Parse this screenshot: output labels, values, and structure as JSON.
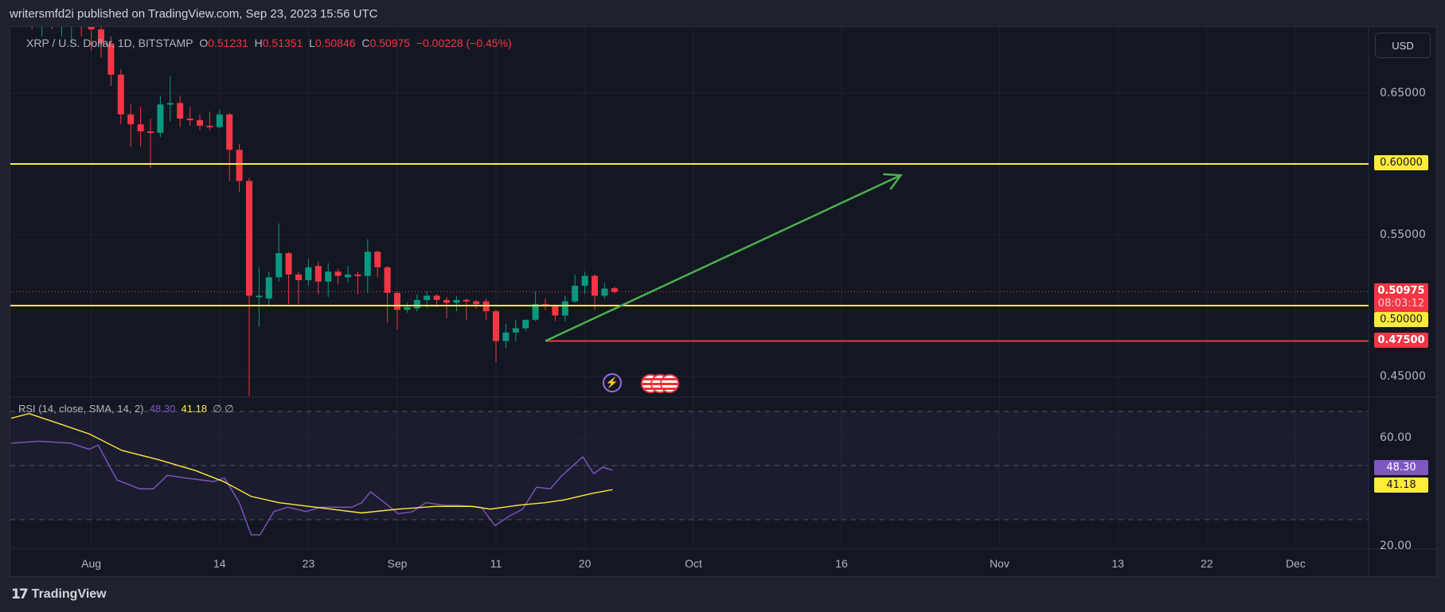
{
  "header": {
    "published": "writersmfd2i published on TradingView.com, Sep 23, 2023 15:56 UTC"
  },
  "legend": {
    "symbol": "XRP / U.S. Dollar, 1D, BITSTAMP",
    "o_label": "O",
    "o": "0.51231",
    "h_label": "H",
    "h": "0.51351",
    "l_label": "L",
    "l": "0.50846",
    "c_label": "C",
    "c": "0.50975",
    "change": "−0.00228 (−0.45%)"
  },
  "currency_button": "USD",
  "price_axis": [
    "0.65000",
    "0.55000",
    "0.45000"
  ],
  "tags": {
    "level_high": "0.60000",
    "last_price": "0.50975",
    "countdown": "08:03:12",
    "level_mid": "0.50000",
    "level_low": "0.47500",
    "rsi": "48.30",
    "rsi_sma": "41.18"
  },
  "rsi_axis": [
    "60.00",
    "20.00"
  ],
  "rsi_legend": {
    "name": "RSI (14, close, SMA, 14, 2)",
    "rsi": "48.30",
    "sma": "41.18",
    "extra": "∅ ∅"
  },
  "time_axis": [
    {
      "label": "Aug",
      "d": 0
    },
    {
      "label": "14",
      "d": 13
    },
    {
      "label": "23",
      "d": 22
    },
    {
      "label": "Sep",
      "d": 31
    },
    {
      "label": "11",
      "d": 41
    },
    {
      "label": "20",
      "d": 50
    },
    {
      "label": "Oct",
      "d": 61
    },
    {
      "label": "16",
      "d": 76
    },
    {
      "label": "Nov",
      "d": 92
    },
    {
      "label": "13",
      "d": 104
    },
    {
      "label": "22",
      "d": 113
    },
    {
      "label": "Dec",
      "d": 122
    }
  ],
  "footer": {
    "brand": "TradingView"
  },
  "colors": {
    "up": "#089981",
    "down": "#f23645",
    "level": "#ffeb3b",
    "arrow": "#4caf50",
    "rsi": "#7e57c2",
    "sma": "#ffeb3b"
  },
  "chart_data": {
    "type": "candlestick",
    "title": "XRP / U.S. Dollar, 1D, BITSTAMP",
    "x_unit": "days from Aug 1, 2023",
    "candles": [
      [
        -7,
        0.72,
        0.74,
        0.7,
        0.71
      ],
      [
        -6,
        0.71,
        0.73,
        0.695,
        0.705
      ],
      [
        -5,
        0.705,
        0.72,
        0.69,
        0.71
      ],
      [
        -4,
        0.71,
        0.72,
        0.695,
        0.7
      ],
      [
        -3,
        0.7,
        0.715,
        0.69,
        0.705
      ],
      [
        -2,
        0.705,
        0.72,
        0.685,
        0.71
      ],
      [
        -1,
        0.71,
        0.725,
        0.69,
        0.7
      ],
      [
        0,
        0.7,
        0.71,
        0.68,
        0.695
      ],
      [
        1,
        0.695,
        0.7,
        0.675,
        0.685
      ],
      [
        2,
        0.685,
        0.69,
        0.655,
        0.663
      ],
      [
        3,
        0.663,
        0.667,
        0.628,
        0.635
      ],
      [
        4,
        0.635,
        0.642,
        0.612,
        0.628
      ],
      [
        5,
        0.628,
        0.64,
        0.612,
        0.623
      ],
      [
        6,
        0.623,
        0.632,
        0.597,
        0.622
      ],
      [
        7,
        0.622,
        0.648,
        0.619,
        0.642
      ],
      [
        8,
        0.642,
        0.662,
        0.63,
        0.643
      ],
      [
        9,
        0.643,
        0.648,
        0.626,
        0.632
      ],
      [
        10,
        0.632,
        0.64,
        0.627,
        0.631
      ],
      [
        11,
        0.631,
        0.635,
        0.624,
        0.627
      ],
      [
        12,
        0.627,
        0.637,
        0.624,
        0.626
      ],
      [
        13,
        0.626,
        0.638,
        0.625,
        0.635
      ],
      [
        14,
        0.635,
        0.636,
        0.588,
        0.61
      ],
      [
        15,
        0.61,
        0.614,
        0.58,
        0.588
      ],
      [
        16,
        0.588,
        0.59,
        0.436,
        0.507
      ],
      [
        17,
        0.506,
        0.527,
        0.485,
        0.507
      ],
      [
        18,
        0.505,
        0.524,
        0.5,
        0.52
      ],
      [
        19,
        0.52,
        0.558,
        0.517,
        0.537
      ],
      [
        20,
        0.537,
        0.538,
        0.501,
        0.522
      ],
      [
        21,
        0.522,
        0.524,
        0.501,
        0.518
      ],
      [
        22,
        0.518,
        0.533,
        0.514,
        0.527
      ],
      [
        23,
        0.528,
        0.531,
        0.508,
        0.517
      ],
      [
        24,
        0.517,
        0.53,
        0.506,
        0.524
      ],
      [
        25,
        0.524,
        0.526,
        0.515,
        0.521
      ],
      [
        26,
        0.52,
        0.528,
        0.516,
        0.522
      ],
      [
        27,
        0.522,
        0.524,
        0.508,
        0.521
      ],
      [
        28,
        0.521,
        0.547,
        0.509,
        0.538
      ],
      [
        29,
        0.538,
        0.539,
        0.52,
        0.527
      ],
      [
        30,
        0.527,
        0.528,
        0.488,
        0.509
      ],
      [
        31,
        0.509,
        0.51,
        0.483,
        0.497
      ],
      [
        32,
        0.497,
        0.502,
        0.495,
        0.499
      ],
      [
        33,
        0.498,
        0.508,
        0.496,
        0.504
      ],
      [
        34,
        0.504,
        0.51,
        0.498,
        0.507
      ],
      [
        35,
        0.507,
        0.508,
        0.499,
        0.504
      ],
      [
        36,
        0.504,
        0.506,
        0.491,
        0.502
      ],
      [
        37,
        0.502,
        0.507,
        0.496,
        0.504
      ],
      [
        38,
        0.504,
        0.505,
        0.49,
        0.503
      ],
      [
        39,
        0.503,
        0.504,
        0.498,
        0.501
      ],
      [
        40,
        0.503,
        0.505,
        0.49,
        0.496
      ],
      [
        41,
        0.496,
        0.497,
        0.46,
        0.475
      ],
      [
        42,
        0.475,
        0.487,
        0.47,
        0.481
      ],
      [
        43,
        0.481,
        0.49,
        0.475,
        0.484
      ],
      [
        44,
        0.484,
        0.49,
        0.482,
        0.49
      ],
      [
        45,
        0.49,
        0.51,
        0.489,
        0.501
      ],
      [
        46,
        0.501,
        0.505,
        0.497,
        0.5
      ],
      [
        47,
        0.5,
        0.501,
        0.489,
        0.493
      ],
      [
        48,
        0.493,
        0.507,
        0.489,
        0.503
      ],
      [
        49,
        0.503,
        0.522,
        0.502,
        0.514
      ],
      [
        50,
        0.514,
        0.524,
        0.508,
        0.521
      ],
      [
        51,
        0.521,
        0.522,
        0.497,
        0.507
      ],
      [
        52,
        0.507,
        0.516,
        0.505,
        0.512
      ],
      [
        53,
        0.51231,
        0.51351,
        0.50846,
        0.50975
      ]
    ],
    "price_ticks": [
      0.65,
      0.55,
      0.45
    ],
    "levels": [
      {
        "price": 0.6,
        "color": "yellow"
      },
      {
        "price": 0.5,
        "color": "yellow"
      },
      {
        "price": 0.475,
        "color": "red",
        "from_d": 46
      }
    ],
    "last_price": 0.50975,
    "arrow": {
      "from": [
        46,
        0.475
      ],
      "to": [
        82,
        0.592
      ]
    },
    "rsi": [
      [
        -8.1,
        58.3
      ],
      [
        -5.3,
        59
      ],
      [
        -2.1,
        58.3
      ],
      [
        -0.2,
        56
      ],
      [
        0.7,
        57.6
      ],
      [
        2.6,
        44.7
      ],
      [
        4.9,
        41.4
      ],
      [
        6.3,
        41.4
      ],
      [
        7.7,
        46.4
      ],
      [
        9.6,
        45.4
      ],
      [
        12.4,
        44.1
      ],
      [
        13.5,
        45.4
      ],
      [
        15,
        36.3
      ],
      [
        16.2,
        24.4
      ],
      [
        17.1,
        24.4
      ],
      [
        18.5,
        33
      ],
      [
        19.9,
        34.6
      ],
      [
        21.8,
        33
      ],
      [
        23.2,
        34.6
      ],
      [
        26.4,
        34.6
      ],
      [
        27.4,
        36.3
      ],
      [
        28.3,
        40.3
      ],
      [
        29.7,
        36.3
      ],
      [
        31.1,
        32.2
      ],
      [
        32.5,
        32.9
      ],
      [
        33.9,
        36.3
      ],
      [
        35.8,
        35.3
      ],
      [
        37.2,
        35.3
      ],
      [
        39.5,
        34.6
      ],
      [
        40.9,
        27.8
      ],
      [
        42.3,
        31.2
      ],
      [
        43.7,
        33.9
      ],
      [
        45.1,
        42
      ],
      [
        46.5,
        41.4
      ],
      [
        47.7,
        46.4
      ],
      [
        49.8,
        53.2
      ],
      [
        50.9,
        47
      ],
      [
        51.8,
        49.4
      ],
      [
        52.8,
        48.3
      ]
    ],
    "rsi_sma": [
      [
        -8.1,
        67.5
      ],
      [
        -6.3,
        69.2
      ],
      [
        -3.5,
        65.8
      ],
      [
        -0.2,
        61.7
      ],
      [
        3.1,
        55.6
      ],
      [
        6.8,
        52.2
      ],
      [
        10.6,
        48.1
      ],
      [
        13.4,
        44.1
      ],
      [
        16.2,
        38.6
      ],
      [
        19,
        36.3
      ],
      [
        22.7,
        34.6
      ],
      [
        27.4,
        32.5
      ],
      [
        31.1,
        33.9
      ],
      [
        34.8,
        34.9
      ],
      [
        38.6,
        34.9
      ],
      [
        40.4,
        33.9
      ],
      [
        43.2,
        35.3
      ],
      [
        46,
        36.3
      ],
      [
        47.9,
        37.3
      ],
      [
        50.7,
        39.7
      ],
      [
        52.8,
        41.1
      ]
    ],
    "rsi_bands": [
      70,
      50,
      30
    ],
    "rsi_ticks": [
      60,
      20
    ]
  }
}
